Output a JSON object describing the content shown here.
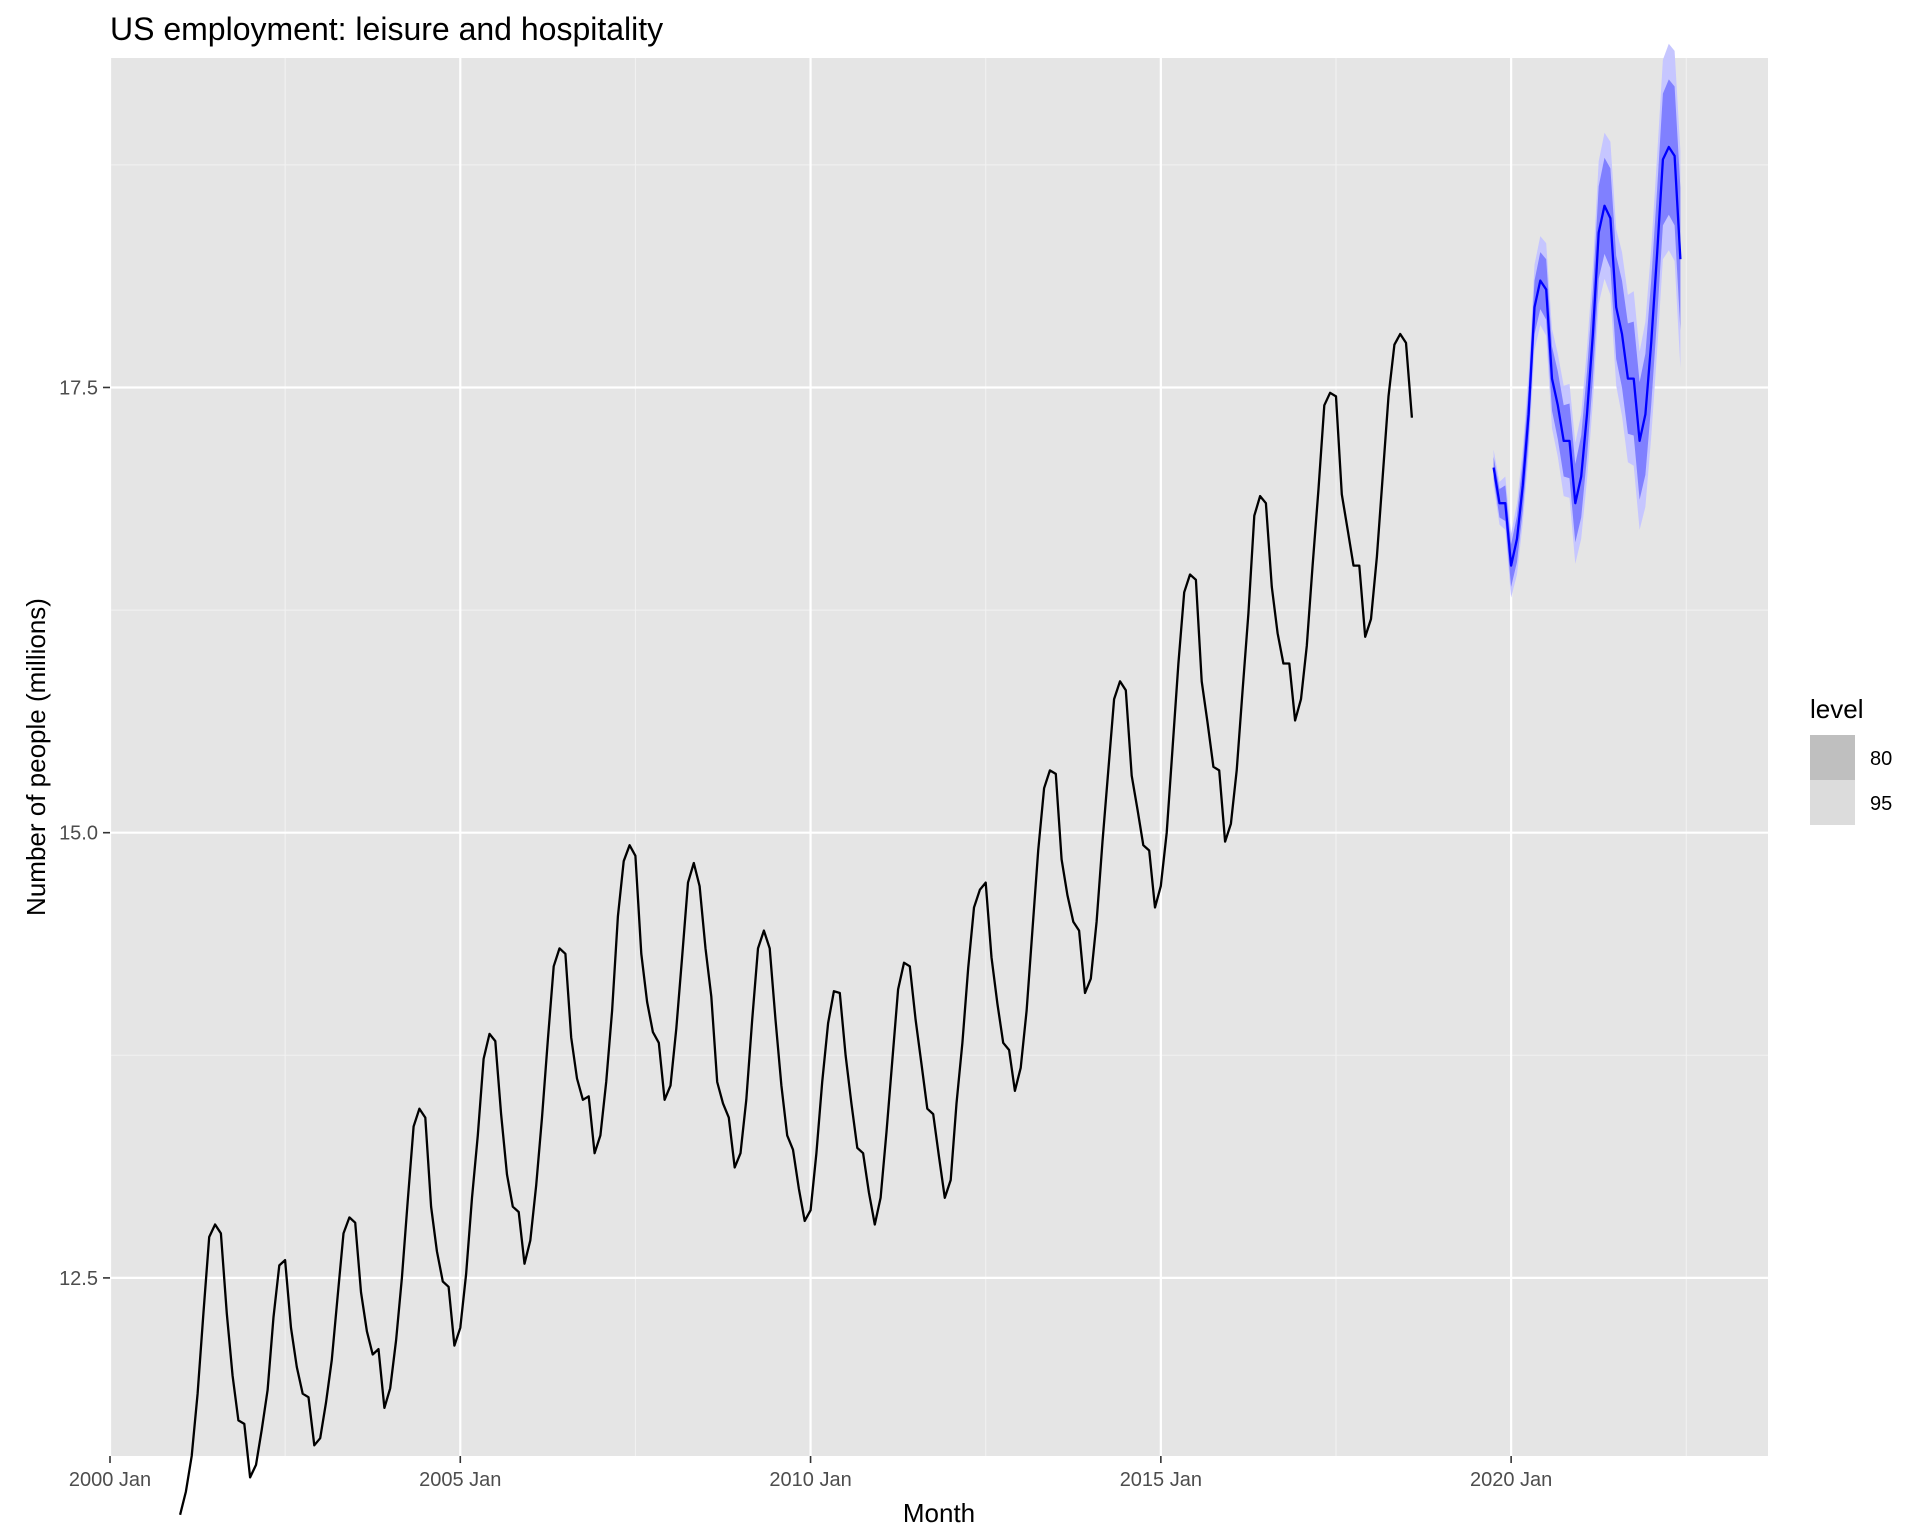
{
  "chart_data": {
    "type": "line",
    "title": "US employment: leisure and hospitality",
    "xlabel": "Month",
    "ylabel": "Number of people (millions)",
    "x_ticks": [
      "2000 Jan",
      "2005 Jan",
      "2010 Jan",
      "2015 Jan",
      "2020 Jan"
    ],
    "y_ticks": [
      "12.5",
      "15.0",
      "17.5"
    ],
    "xlim": [
      "2000-01",
      "2023-09"
    ],
    "ylim": [
      11.5,
      19.35
    ],
    "grid": true,
    "legend": {
      "title": "level",
      "position": "right",
      "entries": [
        "80",
        "95"
      ]
    },
    "series": [
      {
        "kind": "observed",
        "color": "#000000",
        "start": "2001-01",
        "values": [
          11.17,
          11.3,
          11.5,
          11.85,
          12.3,
          12.73,
          12.8,
          12.75,
          12.3,
          11.95,
          11.7,
          11.68,
          11.38,
          11.45,
          11.65,
          11.87,
          12.28,
          12.57,
          12.6,
          12.22,
          12.0,
          11.85,
          11.83,
          11.56,
          11.6,
          11.8,
          12.04,
          12.4,
          12.75,
          12.84,
          12.81,
          12.42,
          12.2,
          12.07,
          12.1,
          11.77,
          11.88,
          12.15,
          12.5,
          12.93,
          13.35,
          13.45,
          13.4,
          12.9,
          12.65,
          12.48,
          12.45,
          12.12,
          12.22,
          12.52,
          12.95,
          13.3,
          13.73,
          13.87,
          13.83,
          13.42,
          13.08,
          12.9,
          12.87,
          12.58,
          12.71,
          13.02,
          13.4,
          13.84,
          14.25,
          14.35,
          14.32,
          13.85,
          13.62,
          13.5,
          13.52,
          13.2,
          13.3,
          13.6,
          14.0,
          14.53,
          14.84,
          14.93,
          14.87,
          14.32,
          14.05,
          13.88,
          13.82,
          13.5,
          13.58,
          13.9,
          14.3,
          14.72,
          14.83,
          14.7,
          14.35,
          14.08,
          13.6,
          13.48,
          13.4,
          13.12,
          13.2,
          13.5,
          13.95,
          14.35,
          14.45,
          14.35,
          13.95,
          13.58,
          13.3,
          13.22,
          13.0,
          12.82,
          12.88,
          13.2,
          13.6,
          13.93,
          14.11,
          14.1,
          13.75,
          13.48,
          13.23,
          13.2,
          12.98,
          12.8,
          12.95,
          13.32,
          13.72,
          14.12,
          14.27,
          14.25,
          13.95,
          13.7,
          13.45,
          13.42,
          13.18,
          12.95,
          13.05,
          13.48,
          13.82,
          14.24,
          14.58,
          14.68,
          14.72,
          14.3,
          14.04,
          13.82,
          13.78,
          13.55,
          13.68,
          14.0,
          14.45,
          14.9,
          15.25,
          15.35,
          15.33,
          14.85,
          14.65,
          14.5,
          14.45,
          14.1,
          14.18,
          14.5,
          14.95,
          15.35,
          15.75,
          15.85,
          15.8,
          15.32,
          15.13,
          14.93,
          14.9,
          14.58,
          14.7,
          15.0,
          15.47,
          15.95,
          16.35,
          16.45,
          16.42,
          15.85,
          15.62,
          15.37,
          15.35,
          14.95,
          15.05,
          15.35,
          15.8,
          16.23,
          16.78,
          16.89,
          16.85,
          16.38,
          16.12,
          15.95,
          15.95,
          15.63,
          15.75,
          16.05,
          16.5,
          16.93,
          17.4,
          17.47,
          17.45,
          16.9,
          16.7,
          16.5,
          16.5,
          16.1,
          16.2,
          16.55,
          17.0,
          17.45,
          17.74,
          17.8,
          17.75,
          17.33
        ]
      },
      {
        "kind": "forecast",
        "color": "#0000ff",
        "start": "2019-10",
        "values": [
          17.05,
          16.85,
          16.85,
          16.5,
          16.65,
          16.95,
          17.35,
          17.95,
          18.1,
          18.05,
          17.55,
          17.4,
          17.2,
          17.2,
          16.85,
          17.0,
          17.35,
          17.8,
          18.37,
          18.52,
          18.45,
          17.95,
          17.8,
          17.55,
          17.55,
          17.2,
          17.35,
          17.75,
          18.25,
          18.78,
          18.85,
          18.8,
          18.22
        ]
      }
    ],
    "intervals": [
      {
        "level": "80",
        "color": "#8080ff",
        "width": [
          0.06,
          0.08,
          0.1,
          0.12,
          0.13,
          0.14,
          0.15,
          0.15,
          0.16,
          0.17,
          0.18,
          0.19,
          0.2,
          0.21,
          0.22,
          0.23,
          0.24,
          0.25,
          0.26,
          0.27,
          0.28,
          0.29,
          0.3,
          0.31,
          0.32,
          0.33,
          0.34,
          0.35,
          0.36,
          0.37,
          0.38,
          0.39,
          0.4
        ]
      },
      {
        "level": "95",
        "color": "#c6c6ff",
        "width": [
          0.1,
          0.12,
          0.15,
          0.18,
          0.2,
          0.21,
          0.23,
          0.24,
          0.25,
          0.26,
          0.28,
          0.29,
          0.31,
          0.32,
          0.34,
          0.35,
          0.37,
          0.38,
          0.4,
          0.41,
          0.43,
          0.44,
          0.46,
          0.47,
          0.49,
          0.5,
          0.52,
          0.53,
          0.55,
          0.56,
          0.58,
          0.59,
          0.61
        ]
      }
    ]
  }
}
